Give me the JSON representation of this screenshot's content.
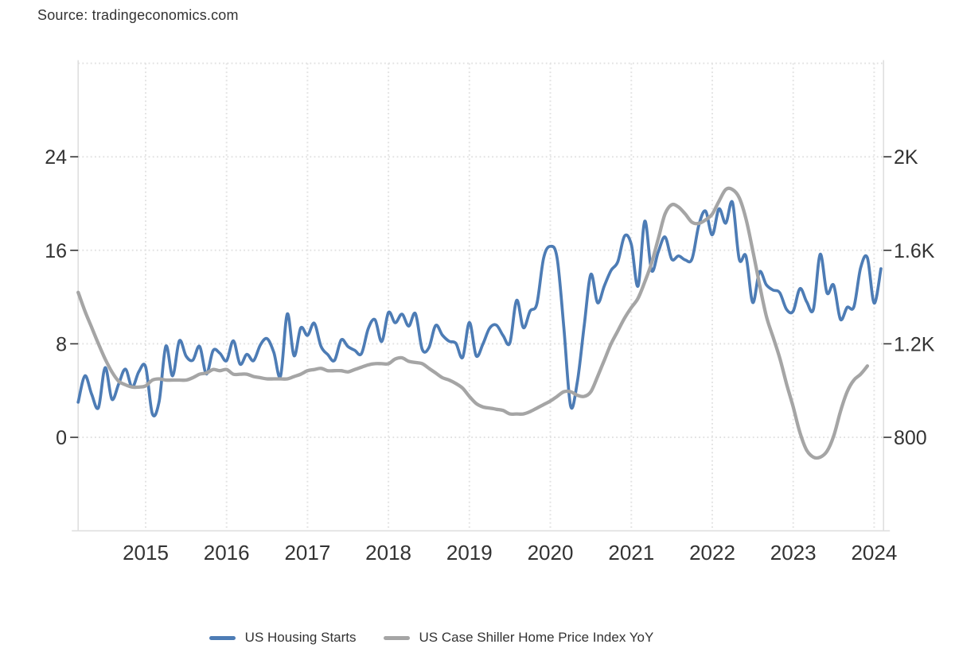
{
  "source": {
    "text": "Source: tradingeconomics.com"
  },
  "legend": {
    "items": [
      {
        "label": "US Housing Starts",
        "color": "#4d7cb5"
      },
      {
        "label": "US Case Shiller Home Price Index YoY",
        "color": "#a5a5a5"
      }
    ]
  },
  "colors": {
    "background": "#ffffff",
    "axis_text": "#333333",
    "gridline": "#e2e2e2",
    "border": "#dfdfdf",
    "tick": "#333333",
    "housing_line": "#4d7cb5",
    "case_shiller_line": "#a5a5a5"
  },
  "chart_data": {
    "type": "line",
    "grid": true,
    "legend_position": "bottom",
    "x_tick_labels": [
      "2015",
      "2016",
      "2017",
      "2018",
      "2019",
      "2020",
      "2021",
      "2022",
      "2023",
      "2024"
    ],
    "left_axis": {
      "tick_labels": [
        "0",
        "8",
        "16",
        "24"
      ],
      "tick_values": [
        0,
        8,
        16,
        24
      ],
      "range": [
        -8,
        32
      ]
    },
    "right_axis": {
      "tick_labels": [
        "800",
        "1.2K",
        "1.6K",
        "2K"
      ],
      "tick_values": [
        800,
        1200,
        1600,
        2000
      ],
      "range": [
        400,
        2400
      ]
    },
    "series": [
      {
        "name": "US Housing Starts",
        "axis": "right",
        "color": "#4d7cb5",
        "frequency": "monthly",
        "start": "2014-03",
        "values": [
          950,
          1063,
          984,
          927,
          1098,
          963,
          1028,
          1092,
          1015,
          1081,
          1101,
          900,
          954,
          1190,
          1063,
          1213,
          1147,
          1130,
          1189,
          1071,
          1171,
          1160,
          1128,
          1213,
          1113,
          1155,
          1128,
          1195,
          1222,
          1164,
          1062,
          1328,
          1149,
          1268,
          1236,
          1288,
          1189,
          1154,
          1129,
          1217,
          1188,
          1172,
          1158,
          1265,
          1303,
          1210,
          1334,
          1290,
          1327,
          1276,
          1329,
          1177,
          1184,
          1279,
          1237,
          1211,
          1202,
          1142,
          1291,
          1149,
          1199,
          1267,
          1280,
          1235,
          1204,
          1386,
          1269,
          1340,
          1371,
          1567,
          1617,
          1567,
          1269,
          934,
          1038,
          1273,
          1497,
          1376,
          1448,
          1514,
          1551,
          1661,
          1625,
          1447,
          1725,
          1514,
          1594,
          1657,
          1562,
          1576,
          1559,
          1563,
          1706,
          1768,
          1666,
          1777,
          1716,
          1805,
          1562,
          1575,
          1377,
          1508,
          1453,
          1430,
          1419,
          1348,
          1340,
          1436,
          1380,
          1348,
          1583,
          1418,
          1451,
          1305,
          1356,
          1359,
          1525,
          1568,
          1374,
          1521
        ]
      },
      {
        "name": "US Case Shiller Home Price Index YoY",
        "axis": "left",
        "color": "#a5a5a5",
        "frequency": "monthly",
        "start": "2014-03",
        "values": [
          12.4,
          10.8,
          9.4,
          8.0,
          6.7,
          5.6,
          4.8,
          4.5,
          4.3,
          4.3,
          4.4,
          4.9,
          5.0,
          4.9,
          4.9,
          4.9,
          4.9,
          5.1,
          5.4,
          5.5,
          5.8,
          5.7,
          5.8,
          5.4,
          5.4,
          5.4,
          5.2,
          5.1,
          5.0,
          5.0,
          5.0,
          5.0,
          5.2,
          5.4,
          5.7,
          5.8,
          5.9,
          5.7,
          5.7,
          5.7,
          5.6,
          5.8,
          6.0,
          6.2,
          6.3,
          6.3,
          6.3,
          6.7,
          6.8,
          6.5,
          6.4,
          6.3,
          5.9,
          5.5,
          5.1,
          4.9,
          4.6,
          4.2,
          3.5,
          2.9,
          2.6,
          2.5,
          2.4,
          2.3,
          2.0,
          2.0,
          2.0,
          2.2,
          2.5,
          2.8,
          3.1,
          3.5,
          3.9,
          3.9,
          3.6,
          3.5,
          3.9,
          5.2,
          6.6,
          8.0,
          9.1,
          10.2,
          11.1,
          11.9,
          13.3,
          14.9,
          17.0,
          19.1,
          19.9,
          19.7,
          19.1,
          18.4,
          18.3,
          18.6,
          19.1,
          20.2,
          21.2,
          21.2,
          20.5,
          18.7,
          16.0,
          13.1,
          10.4,
          8.6,
          6.8,
          4.6,
          2.6,
          0.4,
          -1.1,
          -1.7,
          -1.7,
          -1.2,
          0.1,
          2.2,
          3.9,
          4.9,
          5.4,
          6.1
        ]
      }
    ]
  }
}
